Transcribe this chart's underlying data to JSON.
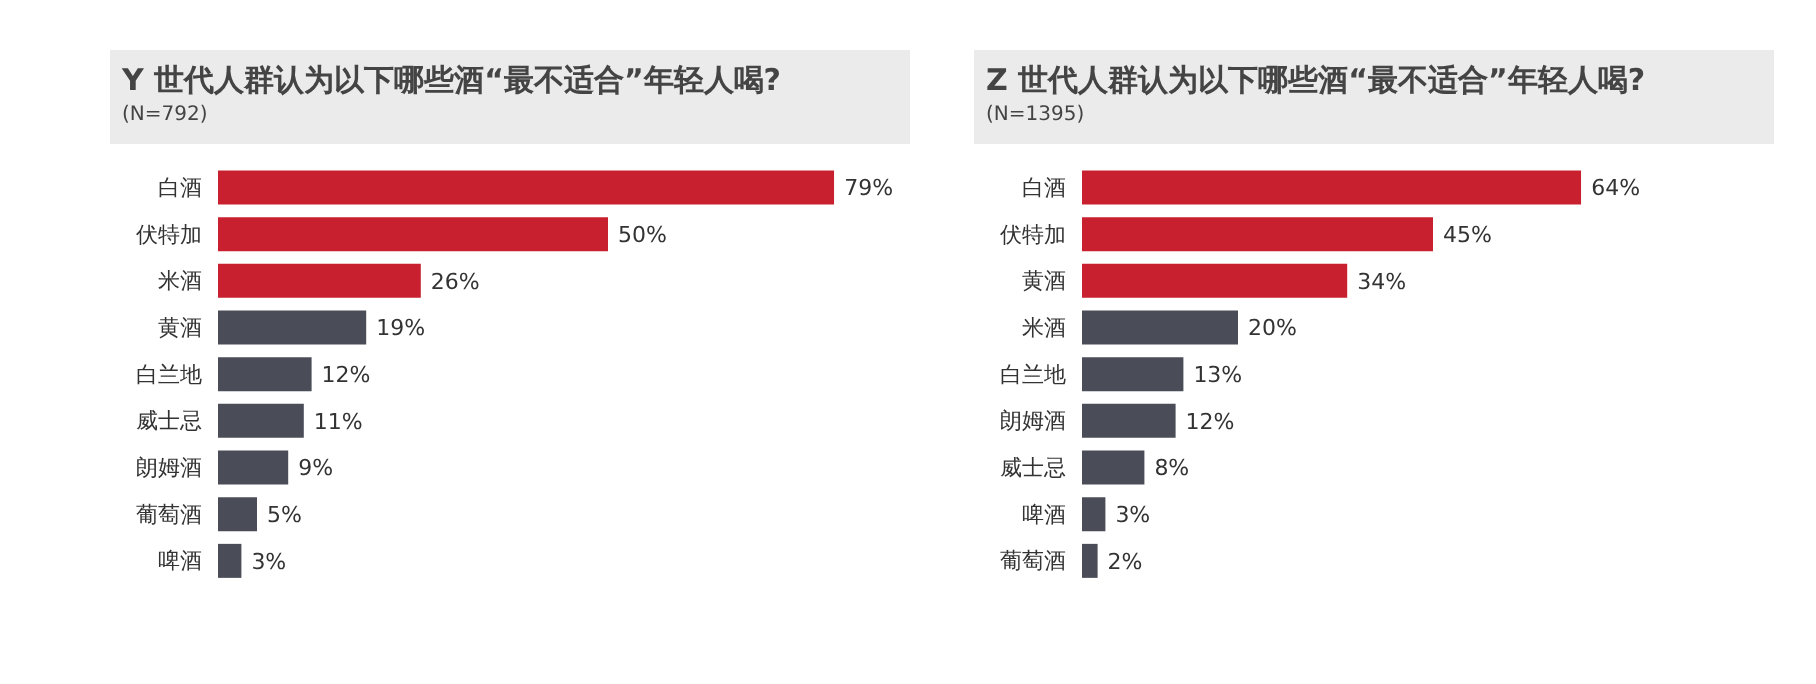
{
  "chart_data": [
    {
      "type": "bar",
      "orientation": "horizontal",
      "title": "Y 世代人群认为以下哪些酒“最不适合”年轻人喝?",
      "subtitle": "(N=792)",
      "categories": [
        "白酒",
        "伏特加",
        "米酒",
        "黄酒",
        "白兰地",
        "威士忌",
        "朗姆酒",
        "葡萄酒",
        "啤酒"
      ],
      "values": [
        79,
        50,
        26,
        19,
        12,
        11,
        9,
        5,
        3
      ],
      "value_labels": [
        "79%",
        "50%",
        "26%",
        "19%",
        "12%",
        "11%",
        "9%",
        "5%",
        "3%"
      ],
      "colors": [
        "#c8202f",
        "#c8202f",
        "#c8202f",
        "#4a4d57",
        "#4a4d57",
        "#4a4d57",
        "#4a4d57",
        "#4a4d57",
        "#4a4d57"
      ],
      "tick_labels": "y",
      "grid": false,
      "legend": false
    },
    {
      "type": "bar",
      "orientation": "horizontal",
      "title": "Z 世代人群认为以下哪些酒“最不适合”年轻人喝?",
      "subtitle": "(N=1395)",
      "categories": [
        "白酒",
        "伏特加",
        "黄酒",
        "米酒",
        "白兰地",
        "朗姆酒",
        "威士忌",
        "啤酒",
        "葡萄酒"
      ],
      "values": [
        64,
        45,
        34,
        20,
        13,
        12,
        8,
        3,
        2
      ],
      "value_labels": [
        "64%",
        "45%",
        "34%",
        "20%",
        "13%",
        "12%",
        "8%",
        "3%",
        "2%"
      ],
      "colors": [
        "#c8202f",
        "#c8202f",
        "#c8202f",
        "#4a4d57",
        "#4a4d57",
        "#4a4d57",
        "#4a4d57",
        "#4a4d57",
        "#4a4d57"
      ],
      "tick_labels": "y",
      "grid": false,
      "legend": false
    }
  ]
}
